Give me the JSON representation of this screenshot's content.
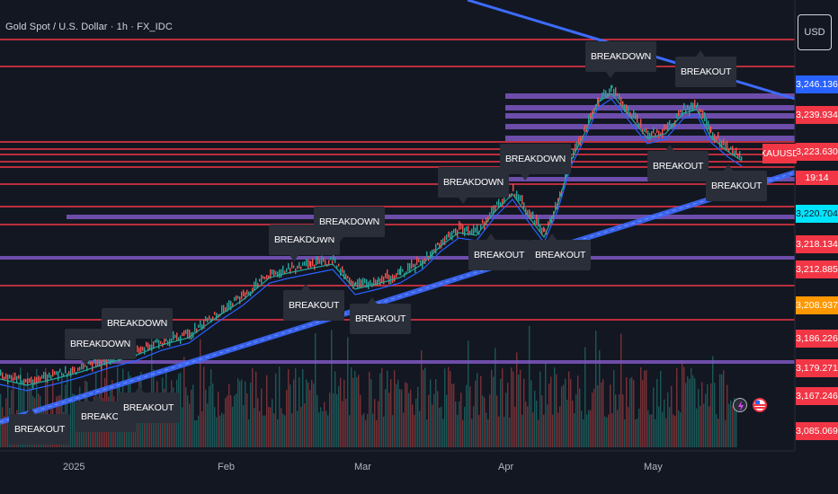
{
  "header": {
    "title": "Gold Spot / U.S. Dollar · 1h · FX_IDC"
  },
  "currency_button": {
    "label": "USD"
  },
  "symbol_tag": {
    "label": "XAUUSD"
  },
  "countdown": {
    "label": "19:14"
  },
  "price_labels": [
    {
      "text": "3,246.136",
      "bg": "#2962ff",
      "fg": "#ffffff",
      "price": 3246.136
    },
    {
      "text": "3,239.934",
      "bg": "#f23645",
      "fg": "#ffffff",
      "price": 3239.934
    },
    {
      "text": "3,223.630",
      "bg": "#f23645",
      "fg": "#ffffff",
      "price": 3223.63
    },
    {
      "text": "3,220.704",
      "bg": "#00e5ff",
      "fg": "#131722",
      "price": 3220.704
    },
    {
      "text": "3,218.134",
      "bg": "#f23645",
      "fg": "#ffffff",
      "price": 3218.134
    },
    {
      "text": "3,212.885",
      "bg": "#f23645",
      "fg": "#ffffff",
      "price": 3212.885
    },
    {
      "text": "3,208.937",
      "bg": "#ff9800",
      "fg": "#ffffff",
      "price": 3208.937
    },
    {
      "text": "3,186.226",
      "bg": "#f23645",
      "fg": "#ffffff",
      "price": 3186.226
    },
    {
      "text": "3,179.271",
      "bg": "#f23645",
      "fg": "#ffffff",
      "price": 3179.271
    },
    {
      "text": "3,167.246",
      "bg": "#f23645",
      "fg": "#ffffff",
      "price": 3167.246
    },
    {
      "text": "3,085.069",
      "bg": "#f23645",
      "fg": "#ffffff",
      "price": 3085.069
    }
  ],
  "chart_data": {
    "type": "line",
    "x_labels": [
      "2025",
      "Feb",
      "Mar",
      "Apr",
      "May"
    ],
    "colors": {
      "background": "#131722",
      "resistance": "#f23645",
      "zone": "#7e57c2",
      "trend": "#3d6bff",
      "ema_fast": "#26a69a",
      "ema_slow": "#2962ff",
      "candle_up": "#26a69a",
      "candle_down": "#ef5350"
    },
    "signals": [
      {
        "label": "BREAKOUT",
        "type": "breakout"
      },
      {
        "label": "BREAKOUT",
        "type": "breakout"
      },
      {
        "label": "BREAKOUT",
        "type": "breakout"
      },
      {
        "label": "BREAKDOWN",
        "type": "breakdown"
      },
      {
        "label": "BREAKDOWN",
        "type": "breakdown"
      },
      {
        "label": "BREAKDOWN",
        "type": "breakdown"
      },
      {
        "label": "BREAKDOWN",
        "type": "breakdown"
      },
      {
        "label": "BREAKOUT",
        "type": "breakout"
      },
      {
        "label": "BREAKOUT",
        "type": "breakout"
      },
      {
        "label": "BREAKDOWN",
        "type": "breakdown"
      },
      {
        "label": "BREAKOUT",
        "type": "breakout"
      },
      {
        "label": "BREAKDOWN",
        "type": "breakdown"
      },
      {
        "label": "BREAKOUT",
        "type": "breakout"
      },
      {
        "label": "BREAKOUT",
        "type": "breakout"
      },
      {
        "label": "BREAKDOWN",
        "type": "breakdown"
      },
      {
        "label": "BREAKOUT",
        "type": "breakout"
      },
      {
        "label": "BREAKOUT",
        "type": "breakout"
      }
    ]
  }
}
